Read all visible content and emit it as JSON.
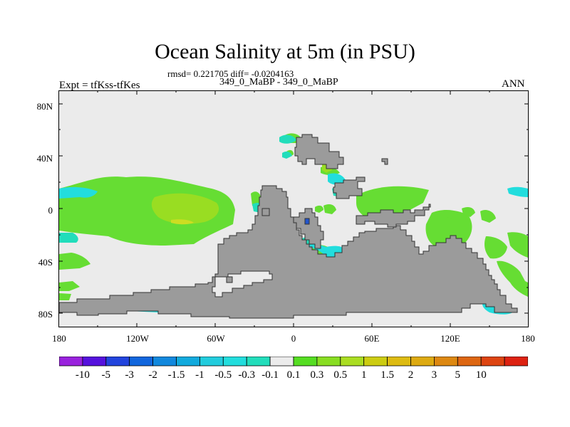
{
  "title": "Ocean Salinity at 5m (in PSU)",
  "stats_line": "rmsd= 0.221705 diff= -0.0204163",
  "subtitle": "349_0_MaBP - 349_0_MaBP",
  "left_label": "Expt = tfKss-tfKes",
  "right_label": "ANN",
  "map": {
    "lat_range": [
      -90,
      90
    ],
    "lon_range": [
      -180,
      180
    ],
    "y_ticks": [
      {
        "lat": 80,
        "label": "80N"
      },
      {
        "lat": 40,
        "label": "40N"
      },
      {
        "lat": 0,
        "label": "0"
      },
      {
        "lat": -40,
        "label": "40S"
      },
      {
        "lat": -80,
        "label": "80S"
      }
    ],
    "x_ticks": [
      {
        "lon": -180,
        "label": "180"
      },
      {
        "lon": -120,
        "label": "120W"
      },
      {
        "lon": -60,
        "label": "60W"
      },
      {
        "lon": 0,
        "label": "0"
      },
      {
        "lon": 60,
        "label": "60E"
      },
      {
        "lon": 120,
        "label": "120E"
      },
      {
        "lon": 180,
        "label": "180"
      }
    ],
    "colors": {
      "ocean_near_zero": "#ebebeb",
      "land": "#9b9b9b",
      "positive_0_1_to_0_3": "#66dd33",
      "positive_0_3_to_0_5": "#99dd22",
      "positive_0_5_to_1": "#ccdd22",
      "negative_0_1_to_0_3": "#33ddaa",
      "negative_0_3_to_0_5": "#22cccc",
      "negative_0_5_to_1": "#22bbdd",
      "negative_1_to_1_5": "#1188dd",
      "negative_1_5_to_2": "#2255cc"
    }
  },
  "colorbar": {
    "colors": [
      "#9922dd",
      "#5511dd",
      "#2244dd",
      "#1166dd",
      "#1188dd",
      "#11aadd",
      "#22ccdd",
      "#22dddd",
      "#22ddbb",
      "#ebebeb",
      "#55dd22",
      "#88dd22",
      "#aadd22",
      "#cccc11",
      "#ddbb11",
      "#ddaa11",
      "#dd8811",
      "#dd6611",
      "#dd4411",
      "#dd2211"
    ],
    "labels": [
      "-10",
      "-5",
      "-3",
      "-2",
      "-1.5",
      "-1",
      "-0.5",
      "-0.3",
      "-0.1",
      "0.1",
      "0.3",
      "0.5",
      "1",
      "1.5",
      "2",
      "3",
      "5",
      "10"
    ]
  }
}
